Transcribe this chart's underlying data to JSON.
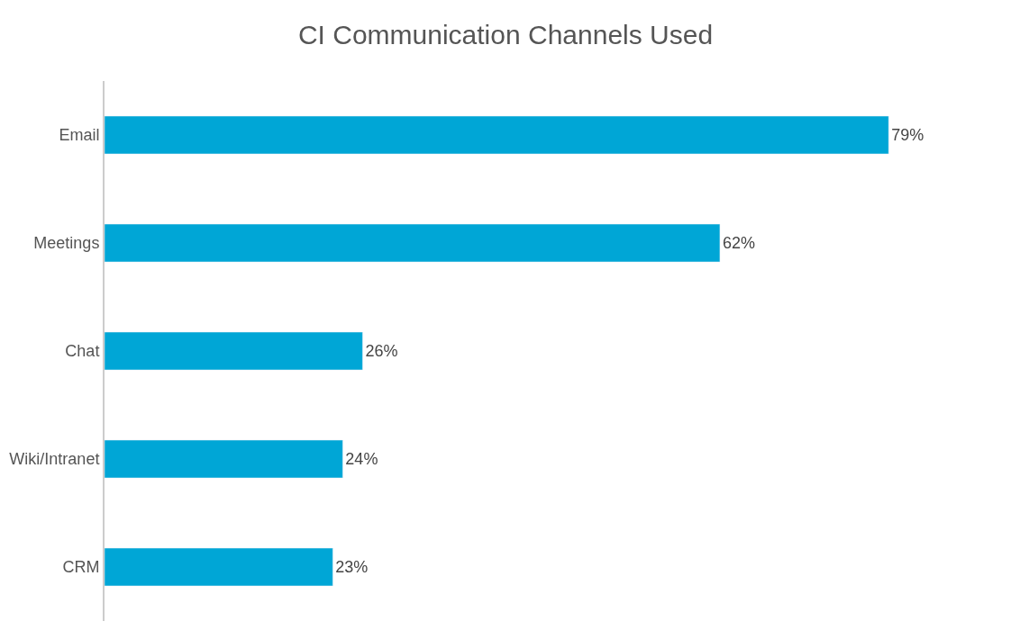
{
  "chart_data": {
    "type": "bar",
    "orientation": "horizontal",
    "title": "CI Communication Channels Used",
    "categories": [
      "Email",
      "Meetings",
      "Chat",
      "Wiki/Intranet",
      "CRM"
    ],
    "values": [
      79,
      62,
      26,
      24,
      23
    ],
    "value_labels": [
      "79%",
      "62%",
      "26%",
      "24%",
      "23%"
    ],
    "color": "#00a6d6",
    "tick_labels": "y"
  }
}
